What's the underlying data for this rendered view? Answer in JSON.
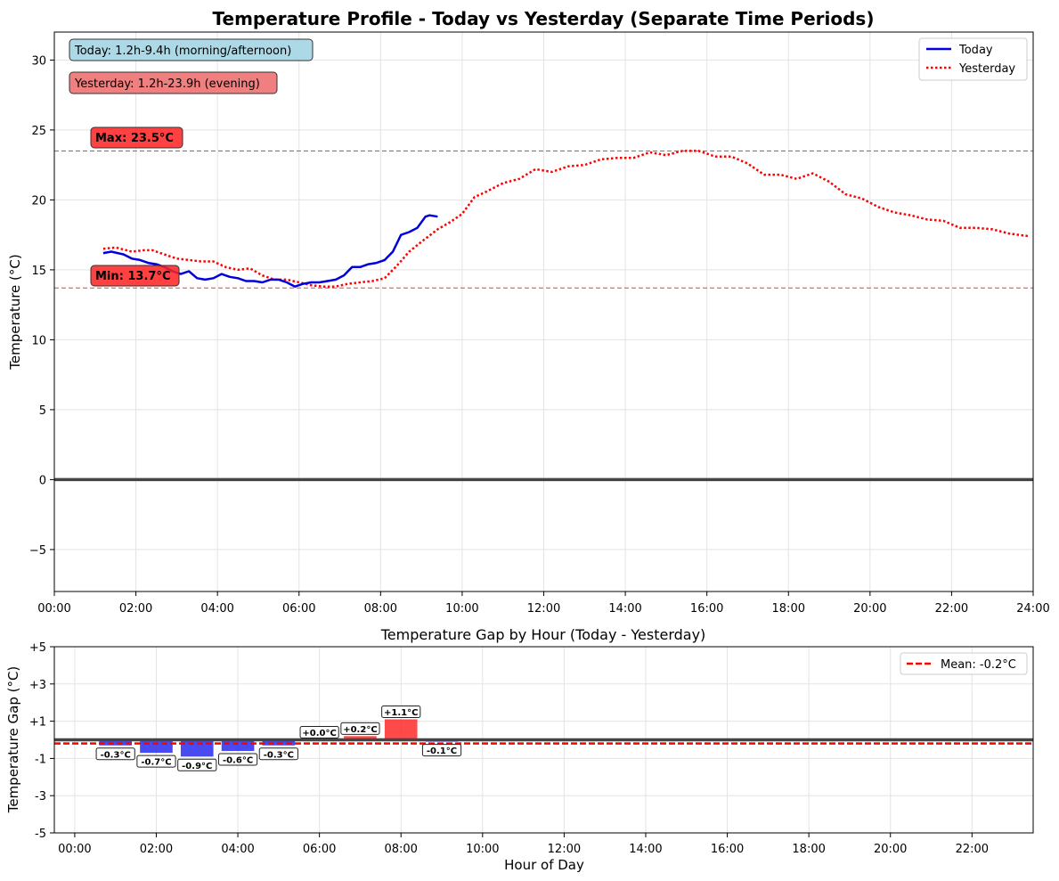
{
  "chart_data": [
    {
      "type": "line",
      "title": "Temperature Profile - Today vs Yesterday (Separate Time Periods)",
      "xlabel": "",
      "ylabel": "Temperature (°C)",
      "xlim": [
        0,
        24
      ],
      "ylim": [
        -8,
        32
      ],
      "xticks": [
        0,
        2,
        4,
        6,
        8,
        10,
        12,
        14,
        16,
        18,
        20,
        22,
        24
      ],
      "xtick_labels": [
        "00:00",
        "02:00",
        "04:00",
        "06:00",
        "08:00",
        "10:00",
        "12:00",
        "14:00",
        "16:00",
        "18:00",
        "20:00",
        "22:00",
        "24:00"
      ],
      "yticks": [
        -5,
        0,
        5,
        10,
        15,
        20,
        25,
        30
      ],
      "ytick_labels": [
        "−5",
        "0",
        "5",
        "10",
        "15",
        "20",
        "25",
        "30"
      ],
      "grid": true,
      "legend_position": "top-right",
      "reference_lines": {
        "zero": 0,
        "max": 23.5,
        "min": 13.7
      },
      "info_boxes": {
        "today": "Today: 1.2h-9.4h (morning/afternoon)",
        "yesterday": "Yesterday: 1.2h-23.9h (evening)"
      },
      "max_label": "Max: 23.5°C",
      "min_label": "Min: 13.7°C",
      "series": [
        {
          "name": "Today",
          "style": "solid",
          "color": "#0000dd",
          "x": [
            1.2,
            1.4,
            1.7,
            1.9,
            2.1,
            2.3,
            2.5,
            2.7,
            2.9,
            3.1,
            3.3,
            3.5,
            3.7,
            3.9,
            4.1,
            4.3,
            4.5,
            4.7,
            4.9,
            5.1,
            5.3,
            5.5,
            5.7,
            5.9,
            6.1,
            6.3,
            6.5,
            6.7,
            6.9,
            7.1,
            7.3,
            7.5,
            7.7,
            7.9,
            8.1,
            8.3,
            8.5,
            8.7,
            8.9,
            9.1,
            9.2,
            9.4
          ],
          "y": [
            16.2,
            16.3,
            16.1,
            15.8,
            15.7,
            15.5,
            15.4,
            15.2,
            14.9,
            14.7,
            14.9,
            14.4,
            14.3,
            14.4,
            14.7,
            14.5,
            14.4,
            14.2,
            14.2,
            14.1,
            14.3,
            14.3,
            14.1,
            13.8,
            14.0,
            14.1,
            14.1,
            14.2,
            14.3,
            14.6,
            15.2,
            15.2,
            15.4,
            15.5,
            15.7,
            16.3,
            17.5,
            17.7,
            18.0,
            18.8,
            18.9,
            18.8
          ]
        },
        {
          "name": "Yesterday",
          "style": "dotted",
          "color": "#ff0000",
          "x": [
            1.2,
            1.5,
            1.9,
            2.2,
            2.4,
            2.7,
            3.0,
            3.3,
            3.6,
            3.9,
            4.2,
            4.5,
            4.8,
            5.1,
            5.4,
            5.7,
            6.0,
            6.3,
            6.6,
            6.9,
            7.2,
            7.5,
            7.8,
            8.1,
            8.4,
            8.7,
            9.0,
            9.4,
            9.7,
            10.0,
            10.3,
            10.6,
            11.0,
            11.4,
            11.8,
            12.2,
            12.6,
            13.0,
            13.4,
            13.8,
            14.2,
            14.6,
            15.0,
            15.4,
            15.8,
            16.2,
            16.6,
            17.0,
            17.4,
            17.8,
            18.2,
            18.6,
            19.0,
            19.4,
            19.8,
            20.2,
            20.6,
            21.0,
            21.4,
            21.8,
            22.2,
            22.6,
            23.0,
            23.4,
            23.9
          ],
          "y": [
            16.5,
            16.6,
            16.3,
            16.4,
            16.4,
            16.1,
            15.8,
            15.7,
            15.6,
            15.6,
            15.2,
            15.0,
            15.1,
            14.6,
            14.3,
            14.3,
            14.1,
            13.9,
            13.8,
            13.8,
            14.0,
            14.1,
            14.2,
            14.4,
            15.3,
            16.3,
            17.0,
            17.9,
            18.4,
            19.0,
            20.2,
            20.6,
            21.2,
            21.5,
            22.2,
            22.0,
            22.4,
            22.5,
            22.9,
            23.0,
            23.0,
            23.4,
            23.2,
            23.5,
            23.5,
            23.1,
            23.1,
            22.6,
            21.8,
            21.8,
            21.5,
            21.9,
            21.3,
            20.4,
            20.1,
            19.5,
            19.1,
            18.9,
            18.6,
            18.5,
            18.0,
            18.0,
            17.9,
            17.6,
            17.4
          ]
        }
      ]
    },
    {
      "type": "bar",
      "title": "Temperature Gap by Hour (Today - Yesterday)",
      "xlabel": "Hour of Day",
      "ylabel": "Temperature Gap (°C)",
      "xlim": [
        -0.5,
        23.5
      ],
      "ylim": [
        -5,
        5
      ],
      "xticks": [
        0,
        2,
        4,
        6,
        8,
        10,
        12,
        14,
        16,
        18,
        20,
        22
      ],
      "xtick_labels": [
        "00:00",
        "02:00",
        "04:00",
        "06:00",
        "08:00",
        "10:00",
        "12:00",
        "14:00",
        "16:00",
        "18:00",
        "20:00",
        "22:00"
      ],
      "yticks": [
        5,
        3,
        1,
        -1,
        -3,
        -5
      ],
      "ytick_labels": [
        "+5",
        "+3",
        "+1",
        "-1",
        "-3",
        "-5"
      ],
      "grid": true,
      "legend_position": "top-right",
      "mean": -0.2,
      "mean_label": "Mean: -0.2°C",
      "hours": [
        1,
        2,
        3,
        4,
        5,
        6,
        7,
        8,
        9
      ],
      "values": [
        -0.3,
        -0.7,
        -0.9,
        -0.6,
        -0.3,
        0.0,
        0.2,
        1.1,
        -0.1
      ],
      "labels": [
        "-0.3°C",
        "-0.7°C",
        "-0.9°C",
        "-0.6°C",
        "-0.3°C",
        "+0.0°C",
        "+0.2°C",
        "+1.1°C",
        "-0.1°C"
      ],
      "positive_color": "#ff2a2a",
      "negative_color": "#2a2aee"
    }
  ]
}
